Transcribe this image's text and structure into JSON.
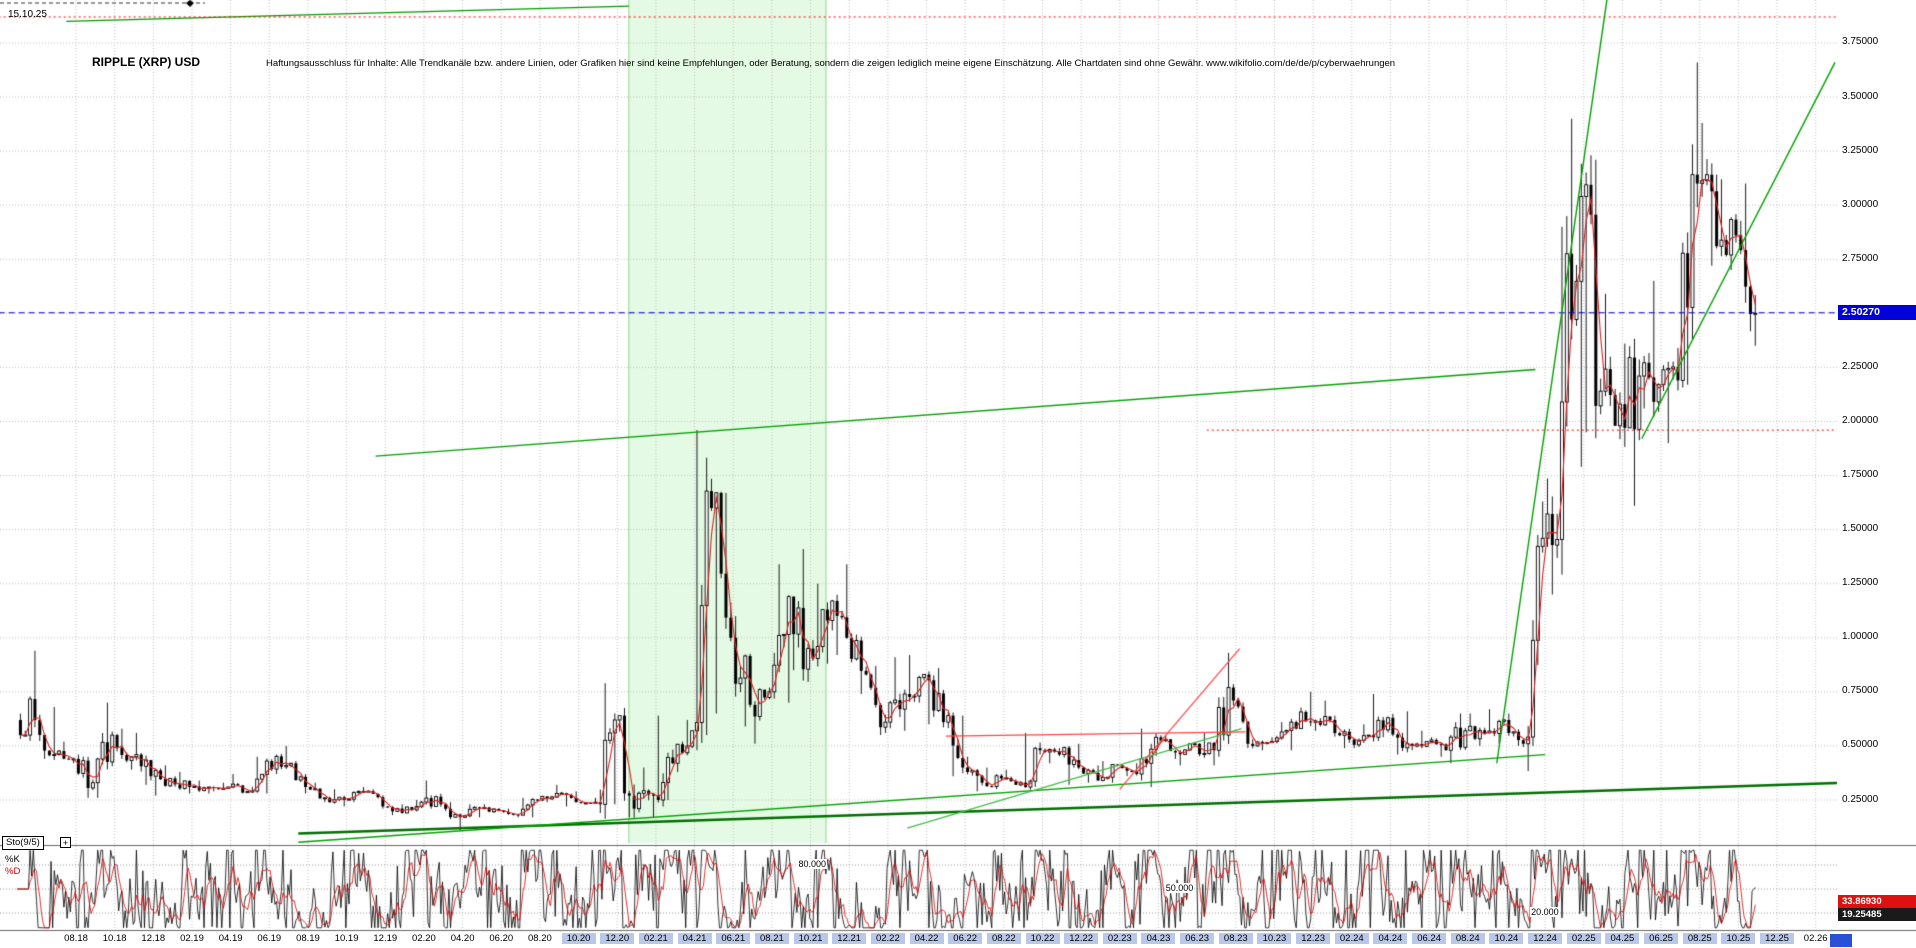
{
  "header": {
    "date_label": "15.10.25",
    "title": "RIPPLE (XRP) USD",
    "disclaimer": "Haftungsausschluss für Inhalte: Alle Trendkanäle bzw. andere Linien, oder Grafiken hier sind keine Empfehlungen, oder Beratung, sondern die zeigen lediglich meine eigene Einschätzung. Alle Chartdaten sind ohne Gewähr.  www.wikifolio.com/de/de/p/cyberwaehrungen"
  },
  "price_axis": {
    "ticks": [
      {
        "label": "3.75000",
        "value": 3.75
      },
      {
        "label": "3.50000",
        "value": 3.5
      },
      {
        "label": "3.25000",
        "value": 3.25
      },
      {
        "label": "3.00000",
        "value": 3.0
      },
      {
        "label": "2.75000",
        "value": 2.75
      },
      {
        "label": "2.25000",
        "value": 2.25
      },
      {
        "label": "2.00000",
        "value": 2.0
      },
      {
        "label": "1.75000",
        "value": 1.75
      },
      {
        "label": "1.50000",
        "value": 1.5
      },
      {
        "label": "1.25000",
        "value": 1.25
      },
      {
        "label": "1.00000",
        "value": 1.0
      },
      {
        "label": "0.75000",
        "value": 0.75
      },
      {
        "label": "0.50000",
        "value": 0.5
      },
      {
        "label": "0.25000",
        "value": 0.25
      }
    ],
    "current_price_label": "2.50270",
    "current_price_value": 2.5027,
    "current_price_bg": "#0000d8"
  },
  "stochastic_panel": {
    "indicator_label": "Sto(9/5)",
    "expand_button": "+",
    "k_label": "%K",
    "d_label": "%D",
    "k_color": "#000000",
    "d_color": "#dd0000",
    "k_value_label": "33.86930",
    "d_value_label": "19.25485",
    "k_box_bg": "#dd1111",
    "d_box_bg": "#1a1a1a",
    "level_labels": [
      {
        "text": "80.000",
        "value": 80,
        "x_month": 38.1
      },
      {
        "text": "50.000",
        "value": 50,
        "x_month": 57.1
      },
      {
        "text": "20.000",
        "value": 20,
        "x_month": 76.0
      }
    ]
  },
  "x_axis": {
    "labels": [
      "08.18",
      "10.18",
      "12.18",
      "02.19",
      "04.19",
      "06.19",
      "08.19",
      "10.19",
      "12.19",
      "02.20",
      "04.20",
      "06.20",
      "08.20",
      "10.20",
      "12.20",
      "02.21",
      "04.21",
      "06.21",
      "08.21",
      "10.21",
      "12.21",
      "02.22",
      "04.22",
      "06.22",
      "08.22",
      "10.22",
      "12.22",
      "02.23",
      "04.23",
      "06.23",
      "08.23",
      "10.23",
      "12.23",
      "02.24",
      "04.24",
      "06.24",
      "08.24",
      "10.24",
      "12.24",
      "02.25",
      "04.25",
      "06.25",
      "08.25",
      "10.25",
      "12.25",
      "02.26"
    ],
    "highlight_from_index": 13,
    "highlight_to_index": 44,
    "highlight_color": "#b9c8e8"
  },
  "chart_data": {
    "type": "candlestick",
    "symbol": "RIPPLE (XRP) USD",
    "timeframe": "weekly",
    "x_range": [
      "05.18",
      "02.26"
    ],
    "ylim": [
      0.05,
      3.95
    ],
    "price_grid_step": 0.25,
    "month_offset": -3,
    "columns": [
      "month",
      "low",
      "high",
      "close"
    ],
    "monthly": [
      [
        "05.18",
        0.55,
        0.94,
        0.62
      ],
      [
        "06.18",
        0.44,
        0.68,
        0.46
      ],
      [
        "07.18",
        0.42,
        0.52,
        0.44
      ],
      [
        "08.18",
        0.26,
        0.46,
        0.33
      ],
      [
        "09.18",
        0.26,
        0.7,
        0.55
      ],
      [
        "10.18",
        0.39,
        0.58,
        0.45
      ],
      [
        "11.18",
        0.32,
        0.56,
        0.36
      ],
      [
        "12.18",
        0.27,
        0.41,
        0.35
      ],
      [
        "01.19",
        0.28,
        0.38,
        0.31
      ],
      [
        "02.19",
        0.28,
        0.34,
        0.31
      ],
      [
        "03.19",
        0.29,
        0.33,
        0.31
      ],
      [
        "04.19",
        0.28,
        0.37,
        0.29
      ],
      [
        "05.19",
        0.28,
        0.45,
        0.43
      ],
      [
        "06.19",
        0.37,
        0.5,
        0.41
      ],
      [
        "07.19",
        0.28,
        0.43,
        0.31
      ],
      [
        "08.19",
        0.24,
        0.33,
        0.26
      ],
      [
        "09.19",
        0.22,
        0.3,
        0.25
      ],
      [
        "10.19",
        0.24,
        0.31,
        0.29
      ],
      [
        "11.19",
        0.21,
        0.3,
        0.22
      ],
      [
        "12.19",
        0.18,
        0.23,
        0.19
      ],
      [
        "01.20",
        0.19,
        0.25,
        0.24
      ],
      [
        "02.20",
        0.22,
        0.34,
        0.23
      ],
      [
        "03.20",
        0.11,
        0.24,
        0.17
      ],
      [
        "04.20",
        0.17,
        0.23,
        0.21
      ],
      [
        "05.20",
        0.19,
        0.23,
        0.2
      ],
      [
        "06.20",
        0.17,
        0.21,
        0.18
      ],
      [
        "07.20",
        0.17,
        0.26,
        0.25
      ],
      [
        "08.20",
        0.24,
        0.32,
        0.28
      ],
      [
        "09.20",
        0.22,
        0.29,
        0.24
      ],
      [
        "10.20",
        0.23,
        0.26,
        0.24
      ],
      [
        "11.20",
        0.23,
        0.79,
        0.62
      ],
      [
        "12.20",
        0.17,
        0.64,
        0.21
      ],
      [
        "01.21",
        0.17,
        0.4,
        0.27
      ],
      [
        "02.21",
        0.25,
        0.64,
        0.42
      ],
      [
        "03.21",
        0.38,
        0.62,
        0.57
      ],
      [
        "04.21",
        0.55,
        1.96,
        1.6
      ],
      [
        "05.21",
        0.65,
        1.67,
        1.0
      ],
      [
        "06.21",
        0.59,
        1.1,
        0.69
      ],
      [
        "07.21",
        0.51,
        0.76,
        0.75
      ],
      [
        "08.21",
        0.7,
        1.34,
        1.19
      ],
      [
        "09.21",
        0.85,
        1.41,
        0.95
      ],
      [
        "10.21",
        0.88,
        1.25,
        1.08
      ],
      [
        "11.21",
        0.92,
        1.34,
        1.0
      ],
      [
        "12.21",
        0.74,
        1.02,
        0.83
      ],
      [
        "01.22",
        0.56,
        0.87,
        0.61
      ],
      [
        "02.22",
        0.57,
        0.91,
        0.74
      ],
      [
        "03.22",
        0.7,
        0.92,
        0.83
      ],
      [
        "04.22",
        0.6,
        0.86,
        0.61
      ],
      [
        "05.22",
        0.36,
        0.64,
        0.4
      ],
      [
        "06.22",
        0.29,
        0.45,
        0.33
      ],
      [
        "07.22",
        0.3,
        0.4,
        0.35
      ],
      [
        "08.22",
        0.32,
        0.39,
        0.33
      ],
      [
        "09.22",
        0.31,
        0.56,
        0.48
      ],
      [
        "10.22",
        0.42,
        0.49,
        0.46
      ],
      [
        "11.22",
        0.32,
        0.51,
        0.4
      ],
      [
        "12.22",
        0.33,
        0.41,
        0.34
      ],
      [
        "01.23",
        0.33,
        0.43,
        0.41
      ],
      [
        "02.23",
        0.36,
        0.42,
        0.37
      ],
      [
        "03.23",
        0.31,
        0.58,
        0.54
      ],
      [
        "04.23",
        0.44,
        0.55,
        0.47
      ],
      [
        "05.23",
        0.41,
        0.51,
        0.51
      ],
      [
        "06.23",
        0.41,
        0.56,
        0.48
      ],
      [
        "07.23",
        0.45,
        0.93,
        0.71
      ],
      [
        "08.23",
        0.49,
        0.72,
        0.5
      ],
      [
        "09.23",
        0.48,
        0.54,
        0.52
      ],
      [
        "10.23",
        0.48,
        0.61,
        0.61
      ],
      [
        "11.23",
        0.58,
        0.75,
        0.61
      ],
      [
        "12.23",
        0.57,
        0.71,
        0.62
      ],
      [
        "01.24",
        0.49,
        0.64,
        0.53
      ],
      [
        "02.24",
        0.49,
        0.6,
        0.55
      ],
      [
        "03.24",
        0.54,
        0.74,
        0.63
      ],
      [
        "04.24",
        0.46,
        0.66,
        0.51
      ],
      [
        "05.24",
        0.48,
        0.57,
        0.52
      ],
      [
        "06.24",
        0.45,
        0.54,
        0.48
      ],
      [
        "07.24",
        0.42,
        0.65,
        0.57
      ],
      [
        "08.24",
        0.5,
        0.65,
        0.56
      ],
      [
        "09.24",
        0.51,
        0.67,
        0.62
      ],
      [
        "10.24",
        0.5,
        0.65,
        0.51
      ],
      [
        "11.24",
        0.5,
        1.63,
        1.46
      ],
      [
        "12.24",
        1.2,
        2.9,
        2.09
      ],
      [
        "01.25",
        1.79,
        3.4,
        3.04
      ],
      [
        "02.25",
        1.95,
        3.21,
        2.14
      ],
      [
        "03.25",
        1.98,
        2.59,
        2.08
      ],
      [
        "04.25",
        1.61,
        2.36,
        2.21
      ],
      [
        "05.25",
        2.06,
        2.65,
        2.17
      ],
      [
        "06.25",
        1.9,
        2.34,
        2.19
      ],
      [
        "07.25",
        2.17,
        3.66,
        3.1
      ],
      [
        "08.25",
        2.72,
        3.38,
        2.81
      ],
      [
        "09.25",
        2.7,
        3.12,
        2.86
      ],
      [
        "10.25",
        2.35,
        3.1,
        2.5
      ]
    ],
    "ma": {
      "type": "SMA",
      "window": 3,
      "color": "#dd2222"
    },
    "candle_color": "#000000",
    "shaded_region": {
      "from_month": 28.6,
      "to_month": 38.8,
      "fill": "rgba(187,242,187,0.4)",
      "edge": "#90d890"
    },
    "trend_lines": [
      {
        "name": "green-top-left",
        "color": "#009900",
        "width": 1.2,
        "from": [
          -0.5,
          3.85
        ],
        "to": [
          28.6,
          3.92
        ]
      },
      {
        "name": "red-dotted-top",
        "color": "#ff0000",
        "width": 1,
        "dash": [
          2,
          3
        ],
        "from": [
          -4,
          3.87
        ],
        "to": [
          95,
          3.87
        ]
      },
      {
        "name": "blue-dashed-current-price",
        "color": "#0000cc",
        "width": 1.2,
        "dash": [
          6,
          4
        ],
        "from": [
          -4,
          2.5027
        ],
        "to": [
          95,
          2.5027
        ]
      },
      {
        "name": "green-resistance-long",
        "color": "#00a000",
        "width": 1.4,
        "from": [
          15.5,
          1.84
        ],
        "to": [
          75.5,
          2.24
        ]
      },
      {
        "name": "red-dotted-resistance",
        "color": "#ff0000",
        "width": 1,
        "dash": [
          2,
          3
        ],
        "from": [
          58.5,
          1.96
        ],
        "to": [
          95,
          1.96
        ]
      },
      {
        "name": "green-channel-steep-left",
        "color": "#00a000",
        "width": 1.4,
        "from": [
          73.5,
          0.42
        ],
        "to": [
          79.2,
          3.95
        ]
      },
      {
        "name": "green-channel-steep-right",
        "color": "#00a000",
        "width": 1.4,
        "from": [
          81.0,
          1.92
        ],
        "to": [
          91.0,
          3.66
        ]
      },
      {
        "name": "green-support-thick",
        "color": "#007000",
        "width": 2.4,
        "from": [
          11.5,
          0.095
        ],
        "to": [
          95,
          0.34
        ]
      },
      {
        "name": "green-support-mid",
        "color": "#00a000",
        "width": 1.4,
        "from": [
          11.5,
          0.055
        ],
        "to": [
          76.0,
          0.46
        ]
      },
      {
        "name": "green-support-light",
        "color": "#44bb44",
        "width": 1.2,
        "from": [
          43.0,
          0.12
        ],
        "to": [
          60.3,
          0.58
        ]
      },
      {
        "name": "red-mid-horizontal",
        "color": "#ff4444",
        "width": 1.2,
        "from": [
          45.0,
          0.545
        ],
        "to": [
          60.5,
          0.565
        ]
      },
      {
        "name": "red-diagonal-2023",
        "color": "#ff4444",
        "width": 1.2,
        "from": [
          54.0,
          0.3
        ],
        "to": [
          60.2,
          0.95
        ]
      }
    ],
    "stochastic": {
      "indicator": "Sto(9/5)",
      "levels": [
        80,
        50,
        20
      ],
      "k_last": 33.8693,
      "d_last": 19.25485
    }
  }
}
